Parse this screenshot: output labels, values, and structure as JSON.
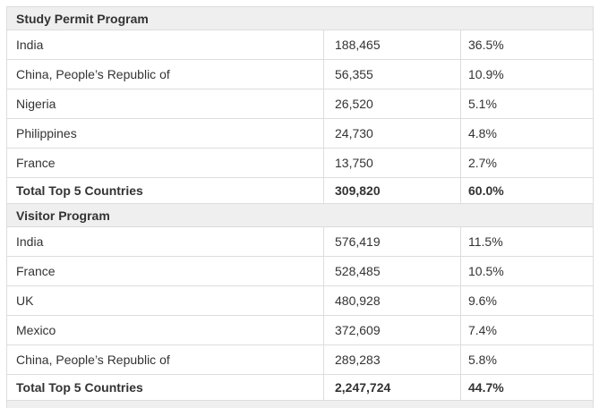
{
  "colors": {
    "header_bg": "#efefef",
    "row_bg": "#ffffff",
    "border": "#dddddd",
    "text": "#333333",
    "page_bg": "#ffffff"
  },
  "chart_data": [
    {
      "type": "table",
      "title": "Study Permit Program",
      "rows": [
        {
          "country": "India",
          "value": "188,465",
          "percent": "36.5%"
        },
        {
          "country": "China, People’s Republic of",
          "value": "56,355",
          "percent": "10.9%"
        },
        {
          "country": "Nigeria",
          "value": "26,520",
          "percent": "5.1%"
        },
        {
          "country": "Philippines",
          "value": "24,730",
          "percent": "4.8%"
        },
        {
          "country": "France",
          "value": "13,750",
          "percent": "2.7%"
        }
      ],
      "total": {
        "label": "Total Top 5 Countries",
        "value": "309,820",
        "percent": "60.0%"
      }
    },
    {
      "type": "table",
      "title": "Visitor Program",
      "rows": [
        {
          "country": "India",
          "value": "576,419",
          "percent": "11.5%"
        },
        {
          "country": "France",
          "value": "528,485",
          "percent": "10.5%"
        },
        {
          "country": "UK",
          "value": "480,928",
          "percent": "9.6%"
        },
        {
          "country": "Mexico",
          "value": "372,609",
          "percent": "7.4%"
        },
        {
          "country": "China, People’s Republic of",
          "value": "289,283",
          "percent": "5.8%"
        }
      ],
      "total": {
        "label": "Total Top 5 Countries",
        "value": "2,247,724",
        "percent": "44.7%"
      }
    }
  ]
}
